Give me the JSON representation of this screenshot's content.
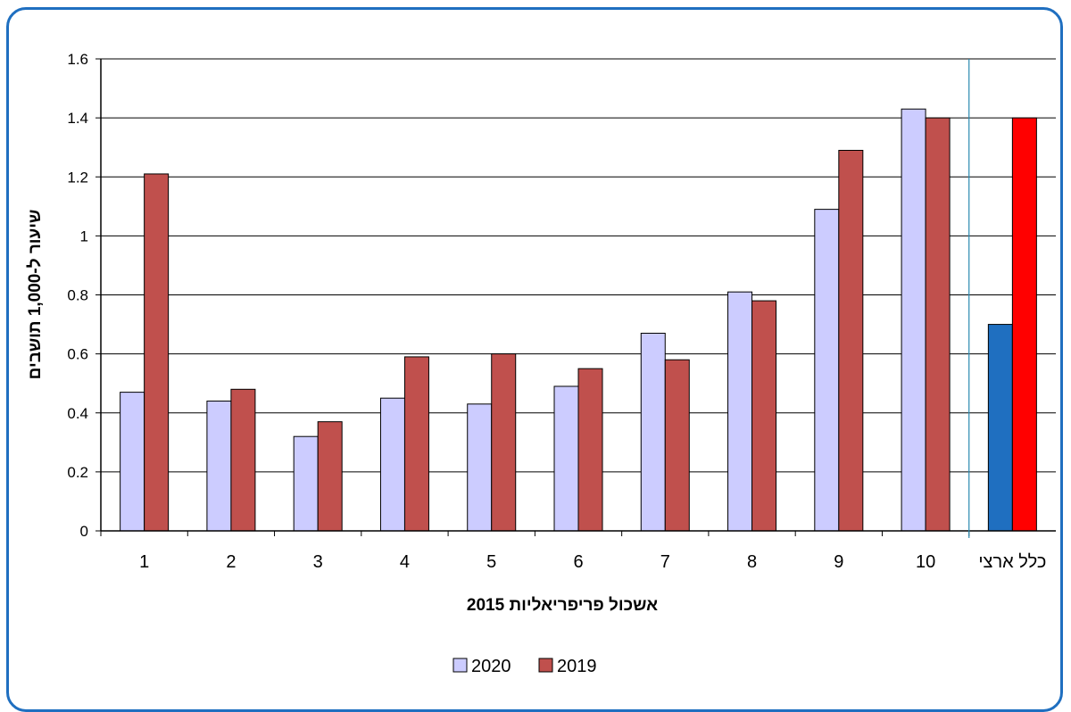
{
  "chart_data": {
    "type": "bar",
    "categories": [
      "1",
      "2",
      "3",
      "4",
      "5",
      "6",
      "7",
      "8",
      "9",
      "10",
      "כלל ארצי"
    ],
    "series": [
      {
        "name": "2020",
        "color": "#ccccff",
        "highlight_color": "#1f6fc0",
        "values": [
          0.47,
          0.44,
          0.32,
          0.45,
          0.43,
          0.49,
          0.67,
          0.81,
          1.09,
          1.43,
          0.7
        ]
      },
      {
        "name": "2019",
        "color": "#c0504d",
        "highlight_color": "#ff0000",
        "values": [
          1.21,
          0.48,
          0.37,
          0.59,
          0.6,
          0.55,
          0.58,
          0.78,
          1.29,
          1.4,
          1.4
        ]
      }
    ],
    "highlight_category": "כלל ארצי",
    "xlabel": "אשכול פריפריאליות 2015",
    "ylabel": "שיעור ל-1,000 תושבים",
    "ylim": [
      0,
      1.6
    ],
    "yticks": [
      "0",
      "0.2",
      "0.4",
      "0.6",
      "0.8",
      "1",
      "1.2",
      "1.4",
      "1.6"
    ],
    "grid": true,
    "legend": "bottom-center"
  }
}
